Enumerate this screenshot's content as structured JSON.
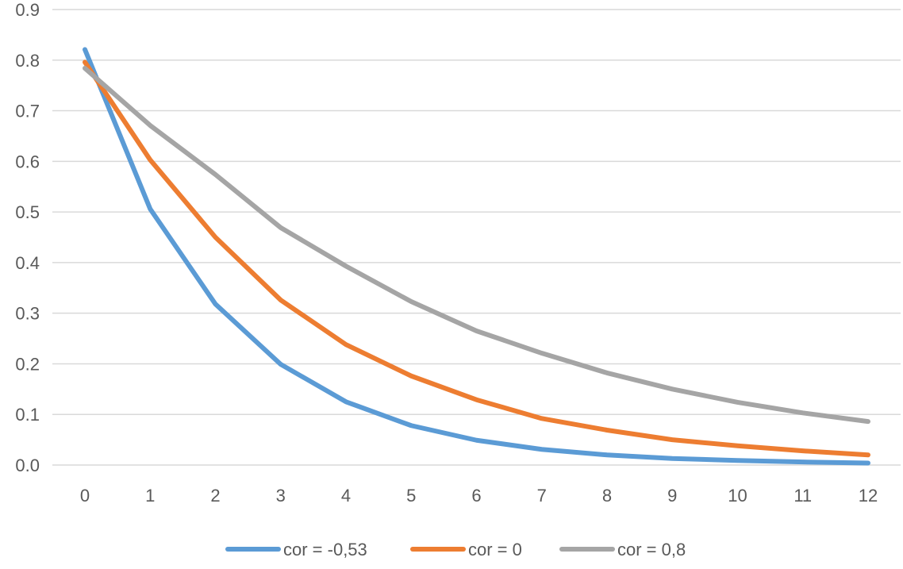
{
  "chart_data": {
    "type": "line",
    "title": "",
    "xlabel": "",
    "ylabel": "",
    "x": [
      0,
      1,
      2,
      3,
      4,
      5,
      6,
      7,
      8,
      9,
      10,
      11,
      12
    ],
    "ylim": [
      0,
      0.9
    ],
    "yticks": [
      "0.0",
      "0.1",
      "0.2",
      "0.3",
      "0.4",
      "0.5",
      "0.6",
      "0.7",
      "0.8",
      "0.9"
    ],
    "grid": "horizontal",
    "legend_placement": "bottom",
    "series": [
      {
        "name": "cor = -0,53",
        "color": "#5B9BD5",
        "values": [
          0.821,
          0.506,
          0.318,
          0.199,
          0.125,
          0.078,
          0.049,
          0.031,
          0.02,
          0.013,
          0.009,
          0.006,
          0.004
        ]
      },
      {
        "name": "cor = 0",
        "color": "#ED7D31",
        "values": [
          0.796,
          0.603,
          0.45,
          0.326,
          0.238,
          0.176,
          0.129,
          0.092,
          0.069,
          0.05,
          0.038,
          0.028,
          0.02
        ]
      },
      {
        "name": "cor = 0,8",
        "color": "#A5A5A5",
        "values": [
          0.784,
          0.671,
          0.574,
          0.469,
          0.393,
          0.323,
          0.265,
          0.221,
          0.182,
          0.15,
          0.124,
          0.103,
          0.086
        ]
      }
    ]
  }
}
